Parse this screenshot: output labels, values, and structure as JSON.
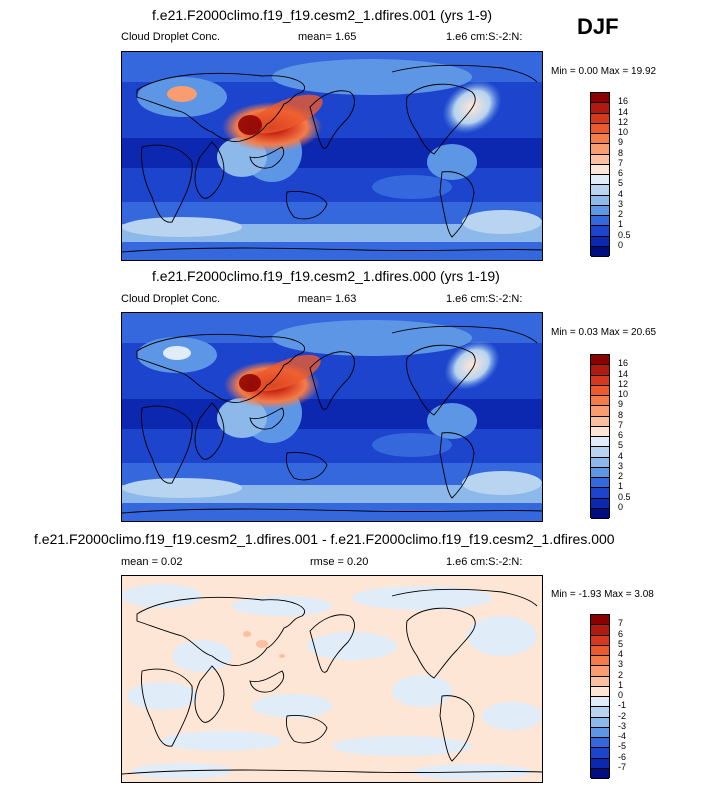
{
  "season": "DJF",
  "panels": [
    {
      "title": "f.e21.F2000climo.f19_f19.cesm2_1.dfires.001 (yrs 1-9)",
      "left": "Cloud Droplet Conc.",
      "center": "mean=   1.65",
      "right": "1.e6 cm:S:-2:N:",
      "minmax": "Min =   0.00 Max =  19.92"
    },
    {
      "title": "f.e21.F2000climo.f19_f19.cesm2_1.dfires.000 (yrs 1-19)",
      "left": "Cloud Droplet Conc.",
      "center": "mean=   1.63",
      "right": "1.e6 cm:S:-2:N:",
      "minmax": "Min =   0.03 Max =  20.65"
    },
    {
      "title": "f.e21.F2000climo.f19_f19.cesm2_1.dfires.001 - f.e21.F2000climo.f19_f19.cesm2_1.dfires.000",
      "left": "mean =   0.02",
      "center": "rmse =   0.20",
      "right": "1.e6 cm:S:-2:N:",
      "minmax": "Min =  -1.93 Max =   3.08"
    }
  ],
  "colorbars": {
    "field": {
      "labels": [
        "16",
        "14",
        "12",
        "10",
        "9",
        "8",
        "7",
        "6",
        "5",
        "4",
        "3",
        "2",
        "1",
        "0.5",
        "0"
      ],
      "colors": [
        "#8b0000",
        "#b01a10",
        "#d6381e",
        "#ec5a2c",
        "#f47c48",
        "#f99c6f",
        "#fcc0a0",
        "#fde6d6",
        "#e0ecf8",
        "#b8d4f0",
        "#8cb8ea",
        "#5e96e6",
        "#3468dc",
        "#1c44cc",
        "#0c28b0",
        "#000c80"
      ]
    },
    "diff": {
      "labels": [
        "7",
        "6",
        "5",
        "4",
        "3",
        "2",
        "1",
        "0",
        "-1",
        "-2",
        "-3",
        "-4",
        "-5",
        "-6",
        "-7"
      ],
      "colors": [
        "#8b0000",
        "#b01a10",
        "#d6381e",
        "#ec5a2c",
        "#f47c48",
        "#f99c6f",
        "#fcc0a0",
        "#fde6d6",
        "#e0ecf8",
        "#b8d4f0",
        "#8cb8ea",
        "#5e96e6",
        "#3468dc",
        "#1c44cc",
        "#0c28b0",
        "#000c80"
      ]
    }
  },
  "chart_data": [
    {
      "type": "heatmap",
      "title": "f.e21.F2000climo.f19_f19.cesm2_1.dfires.001 (yrs 1-9)",
      "variable": "Cloud Droplet Conc.",
      "units": "1.e6 cm:S:-2:N:",
      "mean": 1.65,
      "min": 0.0,
      "max": 19.92,
      "levels": [
        0,
        0.5,
        1,
        2,
        3,
        4,
        5,
        6,
        7,
        8,
        9,
        10,
        12,
        14,
        16
      ]
    },
    {
      "type": "heatmap",
      "title": "f.e21.F2000climo.f19_f19.cesm2_1.dfires.000 (yrs 1-19)",
      "variable": "Cloud Droplet Conc.",
      "units": "1.e6 cm:S:-2:N:",
      "mean": 1.63,
      "min": 0.03,
      "max": 20.65,
      "levels": [
        0,
        0.5,
        1,
        2,
        3,
        4,
        5,
        6,
        7,
        8,
        9,
        10,
        12,
        14,
        16
      ]
    },
    {
      "type": "heatmap",
      "title": "f.e21.F2000climo.f19_f19.cesm2_1.dfires.001 - f.e21.F2000climo.f19_f19.cesm2_1.dfires.000",
      "units": "1.e6 cm:S:-2:N:",
      "mean": 0.02,
      "rmse": 0.2,
      "min": -1.93,
      "max": 3.08,
      "levels": [
        -7,
        -6,
        -5,
        -4,
        -3,
        -2,
        -1,
        0,
        1,
        2,
        3,
        4,
        5,
        6,
        7
      ]
    }
  ]
}
